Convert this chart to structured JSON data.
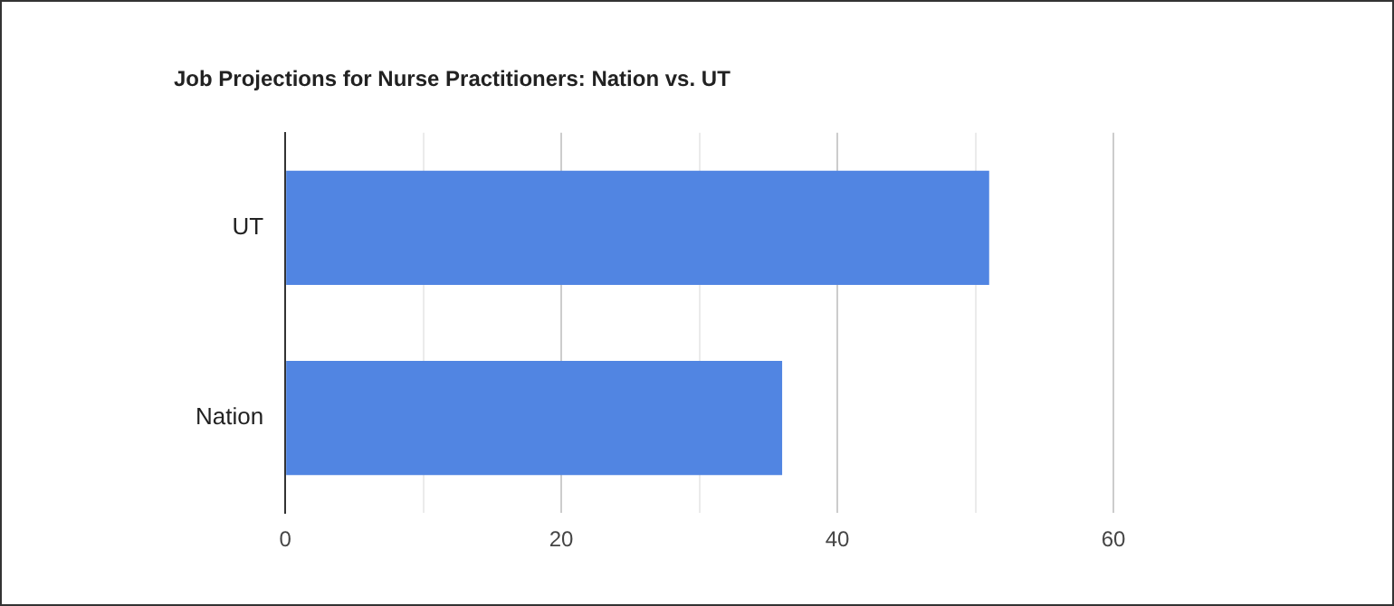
{
  "chart_data": {
    "type": "bar",
    "orientation": "horizontal",
    "title": "Job Projections for Nurse Practitioners: Nation vs. UT",
    "categories": [
      "UT",
      "Nation"
    ],
    "values": [
      51,
      36
    ],
    "color": "#5185e2",
    "xlim": [
      0,
      60
    ],
    "xticks": [
      0,
      {
        "value": 10,
        "label": null
      },
      20,
      {
        "value": 30,
        "label": null
      },
      40,
      {
        "value": 50,
        "label": null
      },
      60
    ],
    "grid": "x",
    "legend": false
  }
}
